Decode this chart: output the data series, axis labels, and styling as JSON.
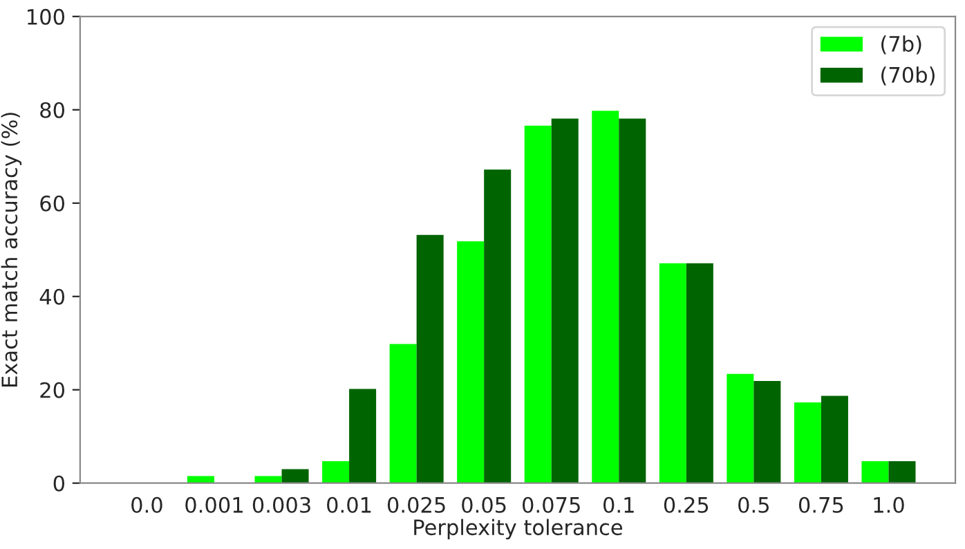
{
  "chart_data": {
    "type": "bar",
    "xlabel": "Perplexity tolerance",
    "ylabel": "Exact match accuracy (%)",
    "categories": [
      "0.0",
      "0.001",
      "0.003",
      "0.01",
      "0.025",
      "0.05",
      "0.075",
      "0.1",
      "0.25",
      "0.5",
      "0.75",
      "1.0"
    ],
    "series": [
      {
        "name": "(7b)",
        "color": "#00ff00",
        "values": [
          0,
          1.5,
          1.5,
          4.7,
          29.8,
          51.8,
          76.6,
          79.8,
          47.1,
          23.4,
          17.3,
          4.7
        ]
      },
      {
        "name": "(70b)",
        "color": "#006400",
        "values": [
          0,
          0,
          3.0,
          20.2,
          53.2,
          67.2,
          78.1,
          78.1,
          47.1,
          21.9,
          18.7,
          4.7
        ]
      }
    ],
    "ylim": [
      0,
      100
    ],
    "yticks": [
      0,
      20,
      40,
      60,
      80,
      100
    ],
    "grid": false,
    "legend": "top right"
  }
}
